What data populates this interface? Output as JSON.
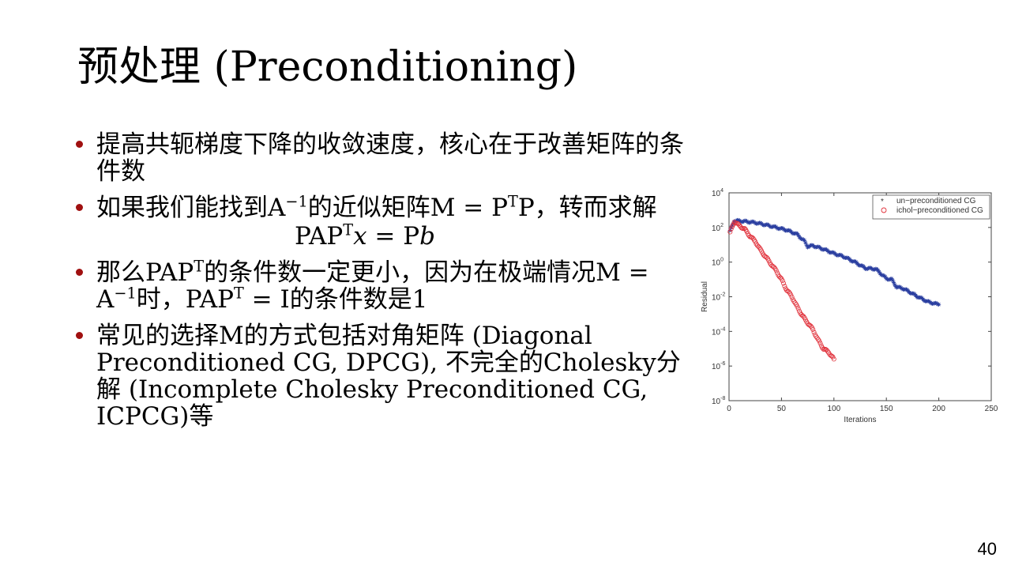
{
  "slide": {
    "title": "预处理 (Preconditioning)",
    "page_number": "40",
    "bullets": [
      "提高共轭梯度下降的收敛速度，核心在于改善矩阵的条件数",
      {
        "pre": "如果我们能找到A",
        "sup1": "−1",
        "mid": "的近似矩阵M = P",
        "sup2": "T",
        "post": "P，转而求解"
      },
      {
        "pre": "那么PAP",
        "sup1": "T",
        "mid": "的条件数一定更小，因为在极端情况M = A",
        "sup2": "−1",
        "mid2": "时，PAP",
        "sup3": "T",
        "post": " = I的条件数是1"
      },
      "常见的选择M的方式包括对角矩阵 (Diagonal Preconditioned CG, DPCG), 不完全的Cholesky分解 (Incomplete Cholesky Preconditioned CG, ICPCG)等"
    ],
    "equation": {
      "lhs": "PAP",
      "sup": "T",
      "var": "x",
      "eq": " = P",
      "rhs": "b"
    }
  },
  "chart_data": {
    "type": "scatter",
    "title": "",
    "xlabel": "Iterations",
    "ylabel": "Residual",
    "xlim": [
      0,
      250
    ],
    "ylim_log10": [
      -8,
      4
    ],
    "y_scale": "log",
    "x_ticks": [
      "0",
      "50",
      "100",
      "150",
      "200",
      "250"
    ],
    "y_ticks": [
      "10^-8",
      "10^-6",
      "10^-4",
      "10^-2",
      "10^0",
      "10^2",
      "10^4"
    ],
    "y_tick_bases": [
      "10",
      "10",
      "10",
      "10",
      "10",
      "10",
      "10"
    ],
    "y_tick_exps": [
      "-8",
      "-6",
      "-4",
      "-2",
      "0",
      "2",
      "4"
    ],
    "legend_position": "top-right",
    "grid": false,
    "series": [
      {
        "name": "un−preconditioned CG",
        "marker": "star",
        "color": "#2b3fa0",
        "points_log10": [
          [
            1,
            1.8
          ],
          [
            5,
            2.4
          ],
          [
            15,
            2.35
          ],
          [
            25,
            2.28
          ],
          [
            35,
            2.15
          ],
          [
            45,
            2.0
          ],
          [
            55,
            1.85
          ],
          [
            65,
            1.6
          ],
          [
            72,
            1.2
          ],
          [
            75,
            0.9
          ],
          [
            80,
            0.95
          ],
          [
            90,
            0.75
          ],
          [
            100,
            0.5
          ],
          [
            110,
            0.3
          ],
          [
            120,
            0.0
          ],
          [
            130,
            -0.35
          ],
          [
            140,
            -0.4
          ],
          [
            150,
            -0.95
          ],
          [
            155,
            -1.0
          ],
          [
            160,
            -1.45
          ],
          [
            165,
            -1.5
          ],
          [
            170,
            -1.65
          ],
          [
            180,
            -2.0
          ],
          [
            190,
            -2.3
          ],
          [
            200,
            -2.45
          ]
        ]
      },
      {
        "name": "ichol−preconditioned CG",
        "marker": "circle",
        "color": "#e0303a",
        "points_log10": [
          [
            1,
            1.7
          ],
          [
            5,
            2.35
          ],
          [
            10,
            2.1
          ],
          [
            15,
            1.9
          ],
          [
            20,
            1.5
          ],
          [
            25,
            1.2
          ],
          [
            30,
            0.7
          ],
          [
            35,
            0.3
          ],
          [
            40,
            -0.1
          ],
          [
            45,
            -0.5
          ],
          [
            50,
            -1.0
          ],
          [
            55,
            -1.6
          ],
          [
            60,
            -2.0
          ],
          [
            65,
            -2.6
          ],
          [
            70,
            -3.1
          ],
          [
            75,
            -3.5
          ],
          [
            80,
            -3.9
          ],
          [
            85,
            -4.5
          ],
          [
            90,
            -5.0
          ],
          [
            95,
            -5.2
          ],
          [
            100,
            -5.6
          ]
        ]
      }
    ]
  }
}
